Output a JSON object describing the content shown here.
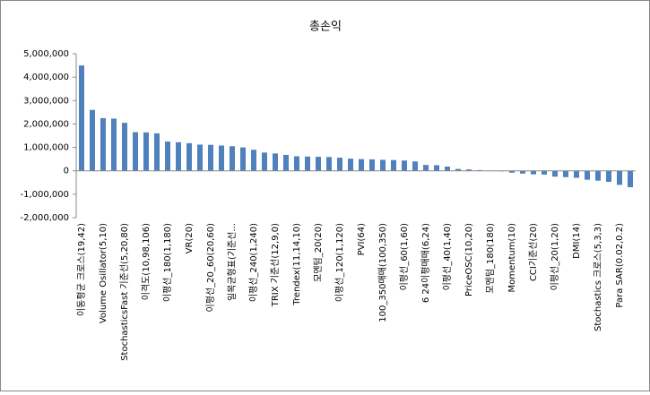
{
  "chart_data": {
    "type": "bar",
    "title": "총손익",
    "categories": [
      "이동평균 크로스(19,42)",
      null,
      "Volume Osillator(5,10)",
      null,
      "StochasticsFast 기준선(5,20,80)",
      null,
      "이격도(10,98,106)",
      null,
      "이평선_180(1,180)",
      null,
      "VR(20)",
      null,
      "이평선_20_60(20,60)",
      null,
      "일목균형표(기준선...",
      null,
      "이평선_240(1,240)",
      null,
      "TRIX 기준선(12,9,0)",
      null,
      "Trendex(11,14,10)",
      null,
      "모멘텀_20(20)",
      null,
      "이평선_120(1,120)",
      null,
      "PVI(64)",
      null,
      "100_350매매(100,350)",
      null,
      "이평선_60(1,60)",
      null,
      "6 24이평매매(6,24)",
      null,
      "이평선_40(1,40)",
      null,
      "PriceOSC(10,20)",
      null,
      "모멘텀_180(180)",
      null,
      "Momentum(10)",
      null,
      "CCI기준선(20)",
      null,
      "이평선_20(1,20)",
      null,
      "DMI(14)",
      null,
      "Stochastics 크로스(5,3,3)",
      null,
      "Para SAR(0.02,0.2)",
      null
    ],
    "values": [
      4500000,
      2600000,
      2250000,
      2230000,
      2050000,
      1650000,
      1640000,
      1600000,
      1250000,
      1220000,
      1180000,
      1120000,
      1110000,
      1080000,
      1050000,
      1000000,
      900000,
      780000,
      740000,
      680000,
      620000,
      610000,
      600000,
      590000,
      560000,
      520000,
      500000,
      490000,
      470000,
      460000,
      440000,
      400000,
      250000,
      240000,
      180000,
      80000,
      60000,
      30000,
      10000,
      -20000,
      -80000,
      -120000,
      -150000,
      -160000,
      -250000,
      -270000,
      -300000,
      -380000,
      -420000,
      -470000,
      -600000,
      -700000
    ],
    "color": "#4f81bd",
    "ylim": [
      -2000000,
      5000000
    ],
    "yticks": [
      {
        "value": -2000000,
        "label": "-2,000,000"
      },
      {
        "value": -1000000,
        "label": "-1,000,000"
      },
      0,
      {
        "value": 1000000,
        "label": "1,000,000"
      },
      {
        "value": 2000000,
        "label": "2,000,000"
      },
      {
        "value": 3000000,
        "label": "3,000,000"
      },
      {
        "value": 4000000,
        "label": "4,000,000"
      },
      {
        "value": 5000000,
        "label": "5,000,000"
      }
    ],
    "grid": false
  }
}
